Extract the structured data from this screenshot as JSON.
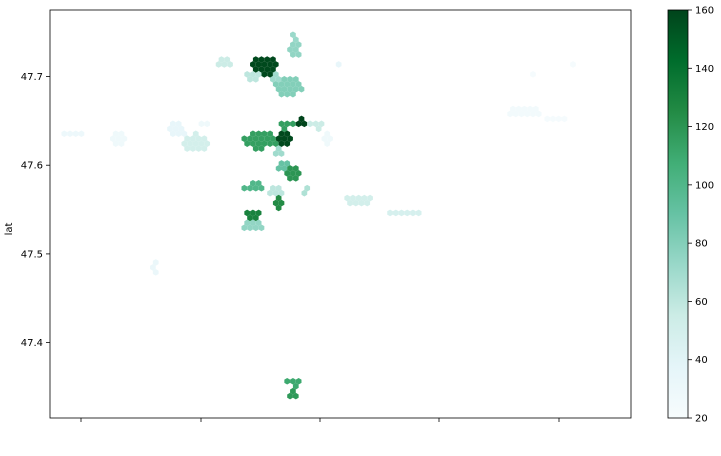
{
  "chart_data": {
    "type": "heatmap",
    "subtype": "hexbin",
    "title": "",
    "xlabel": "",
    "ylabel": "lat",
    "xlim": [
      0.0,
      1.0
    ],
    "ylim": [
      47.315,
      47.775
    ],
    "x_ticks_count": 5,
    "y_ticks": [
      47.4,
      47.5,
      47.6,
      47.7
    ],
    "y_tick_labels": [
      "47.4",
      "47.5",
      "47.6",
      "47.7"
    ],
    "colorbar": {
      "colormap": "BuGn",
      "min": 20,
      "max": 160,
      "ticks": [
        20,
        40,
        60,
        80,
        100,
        120,
        140,
        160
      ],
      "tick_labels": [
        "20",
        "40",
        "60",
        "80",
        "100",
        "120",
        "140",
        "160"
      ],
      "color_stops": [
        "#f7fcfd",
        "#e5f5f9",
        "#ccece6",
        "#99d8c9",
        "#66c2a4",
        "#41ae76",
        "#238b45",
        "#006d2c",
        "#00441b"
      ]
    },
    "grid": false,
    "clusters": [
      {
        "x": 0.04,
        "y": 47.635,
        "w": 0.035,
        "h": 0.008,
        "value": 30
      },
      {
        "x": 0.12,
        "y": 47.63,
        "w": 0.03,
        "h": 0.015,
        "value": 28
      },
      {
        "x": 0.22,
        "y": 47.64,
        "w": 0.03,
        "h": 0.015,
        "value": 35
      },
      {
        "x": 0.25,
        "y": 47.625,
        "w": 0.04,
        "h": 0.02,
        "value": 50
      },
      {
        "x": 0.27,
        "y": 47.645,
        "w": 0.02,
        "h": 0.008,
        "value": 28
      },
      {
        "x": 0.18,
        "y": 47.485,
        "w": 0.012,
        "h": 0.012,
        "value": 32
      },
      {
        "x": 0.3,
        "y": 47.715,
        "w": 0.03,
        "h": 0.01,
        "value": 55
      },
      {
        "x": 0.37,
        "y": 47.712,
        "w": 0.04,
        "h": 0.02,
        "value": 158
      },
      {
        "x": 0.35,
        "y": 47.7,
        "w": 0.025,
        "h": 0.01,
        "value": 60
      },
      {
        "x": 0.42,
        "y": 47.73,
        "w": 0.018,
        "h": 0.02,
        "value": 75
      },
      {
        "x": 0.42,
        "y": 47.745,
        "w": 0.012,
        "h": 0.01,
        "value": 72
      },
      {
        "x": 0.41,
        "y": 47.688,
        "w": 0.045,
        "h": 0.02,
        "value": 80
      },
      {
        "x": 0.39,
        "y": 47.698,
        "w": 0.02,
        "h": 0.01,
        "value": 70
      },
      {
        "x": 0.405,
        "y": 47.645,
        "w": 0.03,
        "h": 0.008,
        "value": 115
      },
      {
        "x": 0.43,
        "y": 47.648,
        "w": 0.03,
        "h": 0.008,
        "value": 160
      },
      {
        "x": 0.46,
        "y": 47.645,
        "w": 0.03,
        "h": 0.008,
        "value": 55
      },
      {
        "x": 0.36,
        "y": 47.628,
        "w": 0.06,
        "h": 0.018,
        "value": 115
      },
      {
        "x": 0.4,
        "y": 47.628,
        "w": 0.035,
        "h": 0.016,
        "value": 158
      },
      {
        "x": 0.39,
        "y": 47.615,
        "w": 0.02,
        "h": 0.008,
        "value": 70
      },
      {
        "x": 0.4,
        "y": 47.6,
        "w": 0.02,
        "h": 0.012,
        "value": 90
      },
      {
        "x": 0.42,
        "y": 47.59,
        "w": 0.025,
        "h": 0.015,
        "value": 120
      },
      {
        "x": 0.44,
        "y": 47.57,
        "w": 0.012,
        "h": 0.01,
        "value": 65
      },
      {
        "x": 0.35,
        "y": 47.575,
        "w": 0.035,
        "h": 0.01,
        "value": 100
      },
      {
        "x": 0.39,
        "y": 47.57,
        "w": 0.03,
        "h": 0.01,
        "value": 60
      },
      {
        "x": 0.395,
        "y": 47.558,
        "w": 0.02,
        "h": 0.012,
        "value": 125
      },
      {
        "x": 0.35,
        "y": 47.545,
        "w": 0.025,
        "h": 0.01,
        "value": 130
      },
      {
        "x": 0.35,
        "y": 47.532,
        "w": 0.04,
        "h": 0.01,
        "value": 75
      },
      {
        "x": 0.48,
        "y": 47.63,
        "w": 0.02,
        "h": 0.012,
        "value": 28
      },
      {
        "x": 0.53,
        "y": 47.56,
        "w": 0.045,
        "h": 0.012,
        "value": 50
      },
      {
        "x": 0.61,
        "y": 47.547,
        "w": 0.05,
        "h": 0.008,
        "value": 48
      },
      {
        "x": 0.495,
        "y": 47.715,
        "w": 0.01,
        "h": 0.005,
        "value": 35
      },
      {
        "x": 0.82,
        "y": 47.66,
        "w": 0.06,
        "h": 0.01,
        "value": 25
      },
      {
        "x": 0.83,
        "y": 47.702,
        "w": 0.01,
        "h": 0.005,
        "value": 22
      },
      {
        "x": 0.9,
        "y": 47.712,
        "w": 0.012,
        "h": 0.01,
        "value": 22
      },
      {
        "x": 0.87,
        "y": 47.652,
        "w": 0.03,
        "h": 0.008,
        "value": 22
      },
      {
        "x": 0.42,
        "y": 47.356,
        "w": 0.03,
        "h": 0.01,
        "value": 110
      },
      {
        "x": 0.42,
        "y": 47.34,
        "w": 0.02,
        "h": 0.01,
        "value": 118
      }
    ]
  }
}
